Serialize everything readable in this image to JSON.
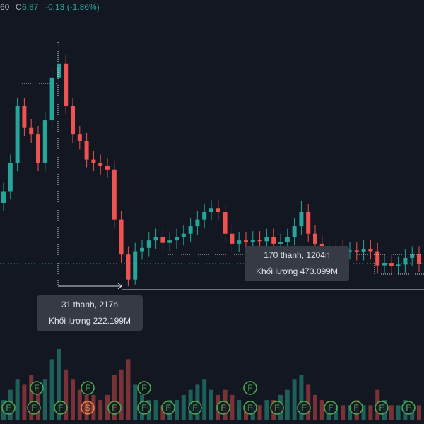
{
  "header": {
    "prev_fragment": "60",
    "close_label": "C",
    "close": "6.87",
    "change": "-0.13 (-1.86%)"
  },
  "chart": {
    "price_range": [
      4.95,
      10.03
    ],
    "volume_range": [
      0,
      18
    ],
    "candles": {
      "open": [
        7.6,
        7.74,
        8.08,
        8.76,
        8.5,
        8.42,
        8.08,
        8.59,
        9.1,
        9.27,
        8.76,
        8.42,
        8.34,
        8.12,
        8.08,
        8.04,
        8.0,
        7.4,
        6.98,
        6.68,
        7.02,
        7.06,
        7.15,
        7.19,
        7.12,
        7.15,
        7.19,
        7.23,
        7.32,
        7.4,
        7.49,
        7.53,
        7.49,
        7.23,
        7.11,
        7.15,
        7.13,
        7.16,
        7.14,
        7.19,
        7.11,
        7.13,
        7.19,
        7.32,
        7.49,
        7.23,
        7.11,
        7.02,
        7.04,
        7.06,
        7.02,
        7.03,
        7.01,
        7.05,
        7.02,
        6.85,
        6.88,
        6.84,
        6.86,
        6.94,
        6.98
      ],
      "high": [
        7.84,
        8.18,
        8.86,
        8.86,
        8.6,
        8.52,
        8.69,
        9.2,
        9.52,
        9.37,
        8.86,
        8.52,
        8.44,
        8.22,
        8.18,
        8.14,
        8.1,
        7.5,
        7.08,
        7.12,
        7.16,
        7.25,
        7.29,
        7.29,
        7.25,
        7.29,
        7.33,
        7.42,
        7.5,
        7.59,
        7.63,
        7.63,
        7.59,
        7.33,
        7.25,
        7.25,
        7.26,
        7.26,
        7.29,
        7.29,
        7.23,
        7.29,
        7.42,
        7.62,
        7.59,
        7.33,
        7.21,
        7.14,
        7.16,
        7.16,
        7.13,
        7.13,
        7.15,
        7.15,
        7.12,
        6.98,
        6.98,
        6.96,
        7.04,
        7.08,
        7.08
      ],
      "low": [
        7.5,
        7.64,
        7.98,
        8.4,
        8.32,
        7.98,
        7.98,
        8.49,
        9.0,
        8.66,
        8.32,
        8.24,
        8.02,
        7.98,
        7.94,
        7.9,
        7.3,
        6.88,
        6.6,
        6.62,
        6.92,
        6.96,
        7.05,
        7.02,
        7.02,
        7.05,
        7.09,
        7.13,
        7.22,
        7.3,
        7.39,
        7.39,
        7.13,
        7.01,
        7.01,
        7.03,
        7.03,
        7.04,
        7.04,
        7.01,
        7.01,
        7.03,
        7.09,
        7.22,
        7.13,
        7.01,
        6.92,
        6.92,
        6.94,
        6.92,
        6.92,
        6.91,
        6.91,
        6.92,
        6.75,
        6.75,
        6.74,
        6.74,
        6.76,
        6.84,
        6.77
      ],
      "close": [
        7.74,
        8.08,
        8.76,
        8.5,
        8.42,
        8.08,
        8.59,
        9.1,
        9.27,
        8.76,
        8.42,
        8.34,
        8.12,
        8.08,
        8.04,
        8.0,
        7.4,
        6.98,
        6.68,
        7.02,
        7.06,
        7.15,
        7.19,
        7.12,
        7.15,
        7.19,
        7.23,
        7.32,
        7.4,
        7.49,
        7.53,
        7.49,
        7.23,
        7.11,
        7.15,
        7.13,
        7.16,
        7.14,
        7.19,
        7.11,
        7.13,
        7.19,
        7.32,
        7.49,
        7.23,
        7.11,
        7.02,
        7.04,
        7.06,
        7.02,
        7.03,
        7.01,
        7.05,
        7.02,
        6.85,
        6.88,
        6.84,
        6.86,
        6.94,
        6.98,
        6.87
      ]
    },
    "volume": [
      4,
      6,
      8,
      7,
      9,
      6,
      8,
      12,
      14,
      10,
      8,
      6,
      5,
      5,
      4,
      5,
      9,
      10,
      12,
      7,
      5,
      4,
      4,
      3,
      4,
      4,
      5,
      6,
      7,
      8,
      6,
      5,
      6,
      5,
      4,
      3,
      3,
      3,
      4,
      4,
      5,
      6,
      8,
      9,
      7,
      5,
      4,
      3,
      3,
      3,
      3,
      4,
      3,
      3,
      6,
      4,
      3,
      3,
      4,
      3,
      3
    ],
    "markers_lower": [
      "F",
      "F",
      "F",
      "S",
      "F",
      "F",
      "F",
      "F",
      "F",
      "F",
      "F",
      "F",
      "F",
      "F",
      "F",
      "F"
    ],
    "markers_upper": [
      "F",
      "F",
      "F",
      "F"
    ]
  },
  "tooltips": [
    {
      "bars": "31 thanh, 217n",
      "volume": "Khối lượng 222.199M"
    },
    {
      "bars": "170 thanh, 1204n",
      "volume": "Khối lượng 473.099M"
    }
  ]
}
